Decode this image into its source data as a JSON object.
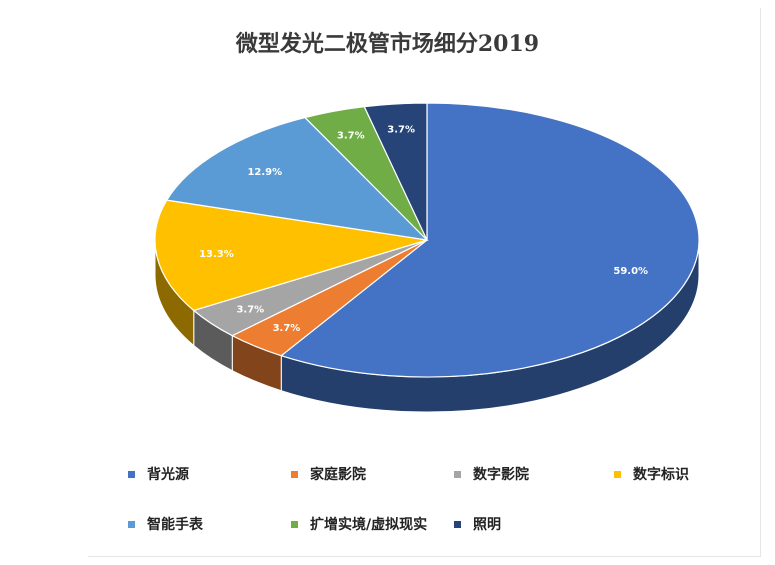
{
  "chart_data": {
    "type": "pie",
    "title": "微型发光二极管市场细分2019",
    "categories": [
      "背光源",
      "家庭影院",
      "数字影院",
      "数字标识",
      "智能手表",
      "扩增实境/虚拟现实",
      "照明"
    ],
    "values": [
      59.0,
      3.7,
      3.7,
      13.3,
      12.9,
      3.7,
      3.7
    ],
    "value_labels": [
      "59.0%",
      "3.7%",
      "3.7%",
      "13.3%",
      "12.9%",
      "3.7%",
      "3.7%"
    ],
    "colors": [
      "#4472C4",
      "#ED7D31",
      "#A5A5A5",
      "#FFC000",
      "#5B9BD5",
      "#70AD47",
      "#264478"
    ],
    "style": "3d-pie",
    "legend_position": "bottom"
  }
}
